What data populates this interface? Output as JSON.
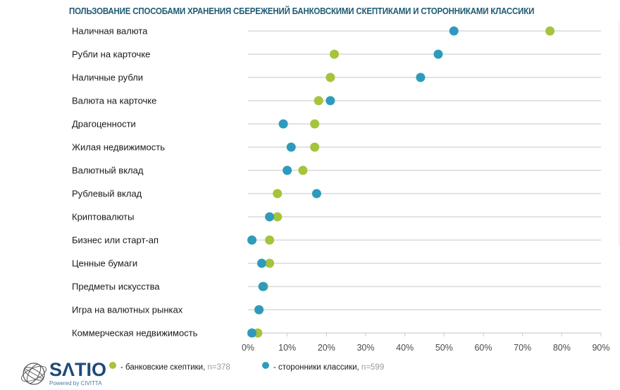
{
  "chart_data": {
    "type": "scatter",
    "subtype": "dot-plot",
    "title": "ПОЛЬЗОВАНИЕ СПОСОБАМИ ХРАНЕНИЯ СБЕРЕЖЕНИЙ БАНКОВСКИМИ СКЕПТИКАМИ И СТОРОННИКАМИ КЛАССИКИ",
    "xlabel": "",
    "ylabel": "",
    "xlim": [
      0,
      90
    ],
    "x_ticks": [
      "0%",
      "10%",
      "20%",
      "30%",
      "40%",
      "50%",
      "60%",
      "70%",
      "80%",
      "90%"
    ],
    "x_tick_values": [
      0,
      10,
      20,
      30,
      40,
      50,
      60,
      70,
      80,
      90
    ],
    "grid": true,
    "legend_position": "bottom-left",
    "categories": [
      "Наличная валюта",
      "Рубли на карточке",
      "Наличные рубли",
      "Валюта на карточке",
      "Драгоценности",
      "Жилая недвижимость",
      "Валютный вклад",
      "Рублевый вклад",
      "Криптовалюты",
      "Бизнес или старт-ап",
      "Ценные бумаги",
      "Предметы искусства",
      "Игра на валютных рынках",
      "Коммерческая недвижимость"
    ],
    "series": [
      {
        "name": "банковские скептики",
        "legend_prefix": "- банковские скептики,",
        "n_label": "n=378",
        "color": "#a5c43a",
        "values": [
          77,
          22,
          21,
          18,
          17,
          17,
          14,
          7.5,
          7.5,
          5.5,
          5.5,
          4,
          2.8,
          2.5
        ]
      },
      {
        "name": "сторонники классики",
        "legend_prefix": "- сторонники классики,",
        "n_label": "n=599",
        "color": "#2e9bbd",
        "values": [
          52.5,
          48.5,
          44,
          21,
          9,
          11,
          10,
          17.5,
          5.5,
          1,
          3.5,
          3.8,
          2.8,
          1
        ]
      }
    ]
  },
  "logo": {
    "name": "SATIO",
    "tagline": "Powered by CIVITTA"
  }
}
